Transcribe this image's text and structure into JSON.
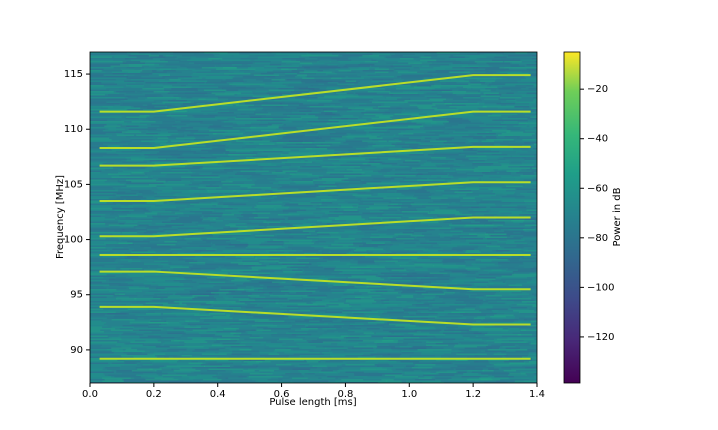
{
  "chart_data": {
    "type": "spectrogram",
    "xlabel": "Pulse length [ms]",
    "ylabel": "Frequency [MHz]",
    "xlim": [
      0,
      1.4
    ],
    "ylim": [
      87,
      117
    ],
    "xticks": [
      {
        "value": 0,
        "label": "0.0"
      },
      0.2,
      0.4,
      0.6,
      0.8,
      {
        "value": 1,
        "label": "1.0"
      },
      1.2,
      1.4
    ],
    "yticks": [
      90,
      95,
      100,
      105,
      110,
      115
    ],
    "line_color": "#b8de29",
    "background_color": "#26828e",
    "series": [
      {
        "x": [
          0.03,
          0.2,
          1.2,
          1.38
        ],
        "values": [
          89.2,
          89.2,
          89.2,
          89.2
        ]
      },
      {
        "x": [
          0.03,
          0.2,
          1.2,
          1.38
        ],
        "values": [
          93.9,
          93.9,
          92.3,
          92.3
        ]
      },
      {
        "x": [
          0.03,
          0.2,
          1.2,
          1.38
        ],
        "values": [
          97.1,
          97.1,
          95.5,
          95.5
        ]
      },
      {
        "x": [
          0.03,
          0.2,
          1.2,
          1.38
        ],
        "values": [
          98.6,
          98.6,
          98.6,
          98.6
        ]
      },
      {
        "x": [
          0.03,
          0.2,
          1.2,
          1.38
        ],
        "values": [
          100.3,
          100.3,
          102,
          102
        ]
      },
      {
        "x": [
          0.03,
          0.2,
          1.2,
          1.38
        ],
        "values": [
          103.5,
          103.5,
          105.2,
          105.2
        ]
      },
      {
        "x": [
          0.03,
          0.2,
          1.2,
          1.38
        ],
        "values": [
          106.7,
          106.7,
          108.4,
          108.4
        ]
      },
      {
        "x": [
          0.03,
          0.2,
          1.2,
          1.38
        ],
        "values": [
          108.3,
          108.3,
          111.6,
          111.6
        ]
      },
      {
        "x": [
          0.03,
          0.2,
          1.2,
          1.38
        ],
        "values": [
          111.6,
          111.6,
          114.9,
          114.9
        ]
      }
    ],
    "colorbar": {
      "label": "Power in dB",
      "clim": [
        -138.6,
        -5
      ],
      "ticks": [
        {
          "value": -20,
          "label": "−20"
        },
        {
          "value": -40,
          "label": "−40"
        },
        {
          "value": -60,
          "label": "−60"
        },
        {
          "value": -80,
          "label": "−80"
        },
        {
          "value": -100,
          "label": "−100"
        },
        {
          "value": -120,
          "label": "−120"
        }
      ]
    }
  }
}
